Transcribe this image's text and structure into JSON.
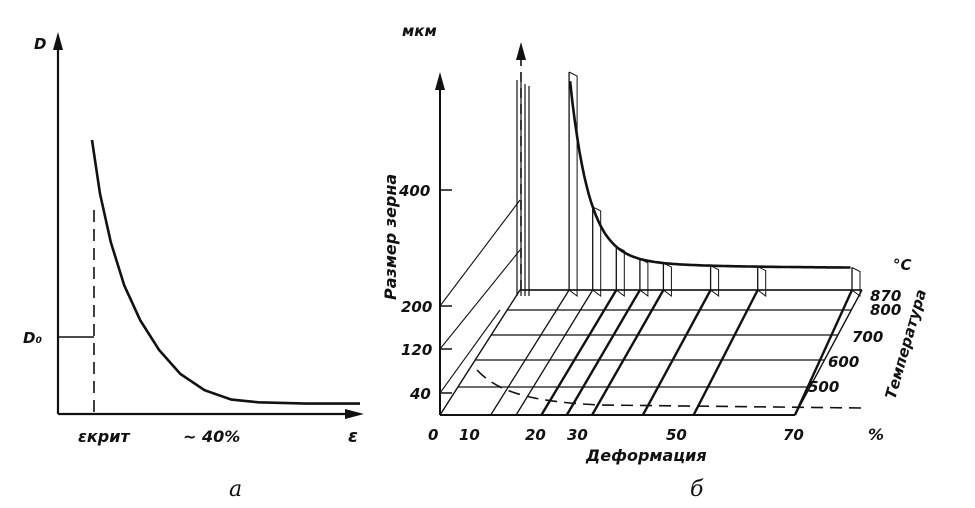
{
  "chart_data": [
    {
      "type": "line",
      "panel_label": "a",
      "ylabel": "D",
      "xlabel": "ε",
      "y_marker_label": "D₀",
      "x_marker_labels": [
        "εкрит",
        "~ 40%"
      ],
      "series": [
        {
          "points": [
            {
              "x": 0.0,
              "y": 10.0
            },
            {
              "x": 0.03,
              "y": 8.0
            },
            {
              "x": 0.07,
              "y": 6.2
            },
            {
              "x": 0.12,
              "y": 4.6
            },
            {
              "x": 0.18,
              "y": 3.3
            },
            {
              "x": 0.25,
              "y": 2.2
            },
            {
              "x": 0.33,
              "y": 1.3
            },
            {
              "x": 0.42,
              "y": 0.7
            },
            {
              "x": 0.52,
              "y": 0.35
            },
            {
              "x": 0.62,
              "y": 0.25
            },
            {
              "x": 0.8,
              "y": 0.2
            },
            {
              "x": 1.0,
              "y": 0.2
            }
          ]
        }
      ],
      "grid": false
    },
    {
      "type": "surface-3d",
      "panel_label": "б",
      "unit_label": "мкм",
      "zlabel": "Размер зерна",
      "xlabel": "Деформация",
      "x_unit": "%",
      "ylabel": "Температура",
      "y_unit": "°C",
      "z_ticks": [
        "400",
        "200",
        "120",
        "40"
      ],
      "x_ticks": [
        "0",
        "10",
        "20",
        "30",
        "50",
        "70"
      ],
      "temperature_ticks": [
        "870",
        "800",
        "700",
        "600",
        "500"
      ],
      "deformation_slices": [
        10,
        15,
        20,
        25,
        30,
        40,
        50,
        70
      ]
    }
  ]
}
